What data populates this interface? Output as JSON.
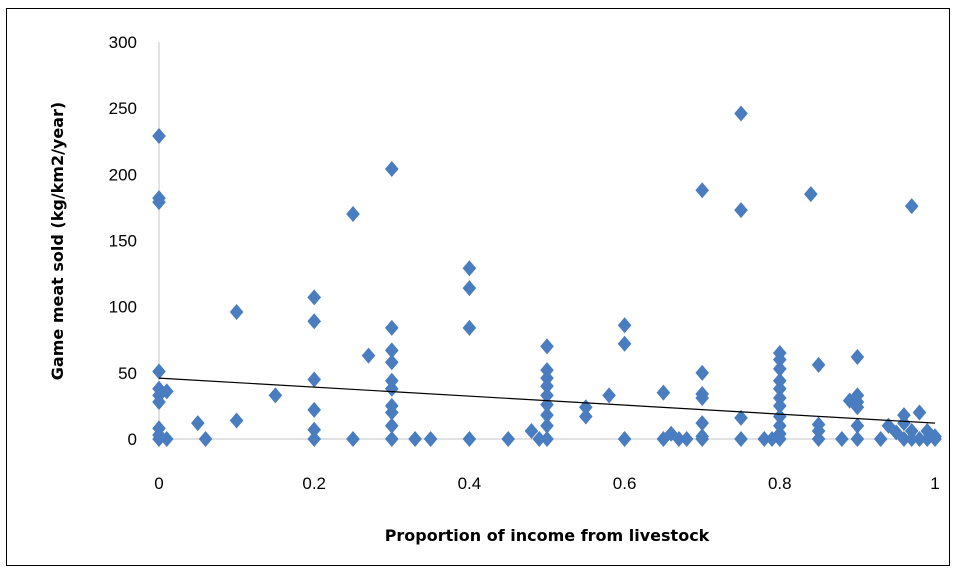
{
  "chart_data": {
    "type": "scatter",
    "title": "",
    "xlabel": "Proportion of income from livestock",
    "ylabel": "Game meat sold  (kg/km2/year)",
    "xlim": [
      0,
      1
    ],
    "ylim": [
      0,
      300
    ],
    "x_ticks": [
      "0",
      "0.2",
      "0.4",
      "0.6",
      "0.8",
      "1"
    ],
    "y_ticks": [
      "0",
      "50",
      "100",
      "150",
      "200",
      "250",
      "300"
    ],
    "grid": false,
    "legend": "none",
    "marker": "diamond",
    "colors": {
      "points": "#4a7cc0",
      "trend": "#000000",
      "axis": "#d9d9d9"
    },
    "trendline": {
      "x": [
        0,
        1
      ],
      "y": [
        46,
        12
      ]
    },
    "points": [
      {
        "x": 0.0,
        "y": 229
      },
      {
        "x": 0.0,
        "y": 182
      },
      {
        "x": 0.0,
        "y": 179
      },
      {
        "x": 0.0,
        "y": 51
      },
      {
        "x": 0.0,
        "y": 38
      },
      {
        "x": 0.0,
        "y": 33
      },
      {
        "x": 0.0,
        "y": 28
      },
      {
        "x": 0.0,
        "y": 8
      },
      {
        "x": 0.0,
        "y": 3
      },
      {
        "x": 0.0,
        "y": 0
      },
      {
        "x": 0.01,
        "y": 36
      },
      {
        "x": 0.01,
        "y": 0
      },
      {
        "x": 0.05,
        "y": 12
      },
      {
        "x": 0.06,
        "y": 0
      },
      {
        "x": 0.1,
        "y": 96
      },
      {
        "x": 0.1,
        "y": 14
      },
      {
        "x": 0.15,
        "y": 33
      },
      {
        "x": 0.2,
        "y": 107
      },
      {
        "x": 0.2,
        "y": 89
      },
      {
        "x": 0.2,
        "y": 45
      },
      {
        "x": 0.2,
        "y": 22
      },
      {
        "x": 0.2,
        "y": 7
      },
      {
        "x": 0.2,
        "y": 0
      },
      {
        "x": 0.25,
        "y": 170
      },
      {
        "x": 0.25,
        "y": 0
      },
      {
        "x": 0.27,
        "y": 63
      },
      {
        "x": 0.3,
        "y": 204
      },
      {
        "x": 0.3,
        "y": 84
      },
      {
        "x": 0.3,
        "y": 67
      },
      {
        "x": 0.3,
        "y": 58
      },
      {
        "x": 0.3,
        "y": 44
      },
      {
        "x": 0.3,
        "y": 38
      },
      {
        "x": 0.3,
        "y": 25
      },
      {
        "x": 0.3,
        "y": 20
      },
      {
        "x": 0.3,
        "y": 10
      },
      {
        "x": 0.3,
        "y": 0
      },
      {
        "x": 0.33,
        "y": 0
      },
      {
        "x": 0.35,
        "y": 0
      },
      {
        "x": 0.4,
        "y": 129
      },
      {
        "x": 0.4,
        "y": 114
      },
      {
        "x": 0.4,
        "y": 84
      },
      {
        "x": 0.4,
        "y": 0
      },
      {
        "x": 0.45,
        "y": 0
      },
      {
        "x": 0.48,
        "y": 6
      },
      {
        "x": 0.49,
        "y": 0
      },
      {
        "x": 0.5,
        "y": 70
      },
      {
        "x": 0.5,
        "y": 52
      },
      {
        "x": 0.5,
        "y": 46
      },
      {
        "x": 0.5,
        "y": 40
      },
      {
        "x": 0.5,
        "y": 33
      },
      {
        "x": 0.5,
        "y": 26
      },
      {
        "x": 0.5,
        "y": 18
      },
      {
        "x": 0.5,
        "y": 10
      },
      {
        "x": 0.5,
        "y": 0
      },
      {
        "x": 0.55,
        "y": 24
      },
      {
        "x": 0.55,
        "y": 17
      },
      {
        "x": 0.58,
        "y": 33
      },
      {
        "x": 0.6,
        "y": 86
      },
      {
        "x": 0.6,
        "y": 72
      },
      {
        "x": 0.6,
        "y": 0
      },
      {
        "x": 0.65,
        "y": 35
      },
      {
        "x": 0.65,
        "y": 0
      },
      {
        "x": 0.66,
        "y": 4
      },
      {
        "x": 0.67,
        "y": 0
      },
      {
        "x": 0.68,
        "y": 0
      },
      {
        "x": 0.7,
        "y": 188
      },
      {
        "x": 0.7,
        "y": 50
      },
      {
        "x": 0.7,
        "y": 34
      },
      {
        "x": 0.7,
        "y": 31
      },
      {
        "x": 0.7,
        "y": 12
      },
      {
        "x": 0.7,
        "y": 2
      },
      {
        "x": 0.7,
        "y": 0
      },
      {
        "x": 0.75,
        "y": 246
      },
      {
        "x": 0.75,
        "y": 173
      },
      {
        "x": 0.75,
        "y": 16
      },
      {
        "x": 0.75,
        "y": 0
      },
      {
        "x": 0.78,
        "y": 0
      },
      {
        "x": 0.79,
        "y": 0
      },
      {
        "x": 0.8,
        "y": 65
      },
      {
        "x": 0.8,
        "y": 60
      },
      {
        "x": 0.8,
        "y": 53
      },
      {
        "x": 0.8,
        "y": 44
      },
      {
        "x": 0.8,
        "y": 38
      },
      {
        "x": 0.8,
        "y": 31
      },
      {
        "x": 0.8,
        "y": 25
      },
      {
        "x": 0.8,
        "y": 17
      },
      {
        "x": 0.8,
        "y": 10
      },
      {
        "x": 0.8,
        "y": 4
      },
      {
        "x": 0.8,
        "y": 0
      },
      {
        "x": 0.84,
        "y": 185
      },
      {
        "x": 0.85,
        "y": 56
      },
      {
        "x": 0.85,
        "y": 11
      },
      {
        "x": 0.85,
        "y": 6
      },
      {
        "x": 0.85,
        "y": 0
      },
      {
        "x": 0.88,
        "y": 0
      },
      {
        "x": 0.89,
        "y": 29
      },
      {
        "x": 0.9,
        "y": 62
      },
      {
        "x": 0.9,
        "y": 33
      },
      {
        "x": 0.9,
        "y": 28
      },
      {
        "x": 0.9,
        "y": 24
      },
      {
        "x": 0.9,
        "y": 10
      },
      {
        "x": 0.9,
        "y": 0
      },
      {
        "x": 0.93,
        "y": 0
      },
      {
        "x": 0.94,
        "y": 10
      },
      {
        "x": 0.95,
        "y": 5
      },
      {
        "x": 0.96,
        "y": 18
      },
      {
        "x": 0.96,
        "y": 12
      },
      {
        "x": 0.96,
        "y": 0
      },
      {
        "x": 0.97,
        "y": 176
      },
      {
        "x": 0.97,
        "y": 6
      },
      {
        "x": 0.97,
        "y": 0
      },
      {
        "x": 0.98,
        "y": 20
      },
      {
        "x": 0.98,
        "y": 0
      },
      {
        "x": 0.99,
        "y": 6
      },
      {
        "x": 0.99,
        "y": 0
      },
      {
        "x": 1.0,
        "y": 2
      },
      {
        "x": 1.0,
        "y": 0
      }
    ]
  }
}
